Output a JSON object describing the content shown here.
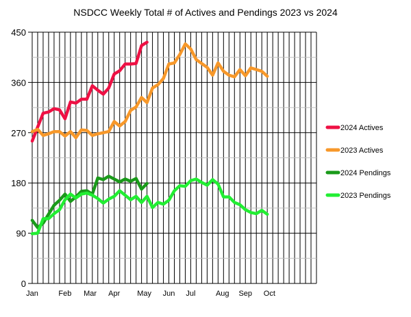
{
  "chart_data": {
    "type": "line",
    "title": "NSDCC Weekly Total # of Actives and Pendings 2023 vs 2024",
    "xlabel": "",
    "ylabel": "",
    "x_unit": "week",
    "xlim": [
      1,
      53
    ],
    "ylim": [
      0,
      450
    ],
    "y_ticks": [
      0,
      90,
      180,
      270,
      360,
      450
    ],
    "x_month_labels": [
      {
        "label": "Jan",
        "week": 1
      },
      {
        "label": "Feb",
        "week": 7
      },
      {
        "label": "Mar",
        "week": 11.6
      },
      {
        "label": "Apr",
        "week": 16
      },
      {
        "label": "May",
        "week": 21.5
      },
      {
        "label": "Jun",
        "week": 26
      },
      {
        "label": "Jul",
        "week": 30
      },
      {
        "label": "Aug",
        "week": 35.8
      },
      {
        "label": "Sep",
        "week": 40
      },
      {
        "label": "Oct",
        "week": 44.4
      }
    ],
    "grid": true,
    "legend_position": "right",
    "series": [
      {
        "name": "2024 Actives",
        "color": "#ee1144",
        "values": [
          255,
          280,
          305,
          307,
          313,
          311,
          295,
          325,
          323,
          330,
          330,
          354,
          346,
          339,
          350,
          375,
          381,
          393,
          393,
          394,
          426,
          432
        ]
      },
      {
        "name": "2023 Actives",
        "color": "#f7982a",
        "values": [
          272,
          276,
          265,
          268,
          272,
          272,
          264,
          272,
          261,
          275,
          274,
          265,
          268,
          270,
          272,
          290,
          282,
          290,
          310,
          316,
          333,
          324,
          350,
          356,
          367,
          393,
          395,
          410,
          429,
          420,
          401,
          394,
          387,
          373,
          395,
          380,
          373,
          370,
          383,
          372,
          386,
          383,
          380,
          371
        ]
      },
      {
        "name": "2024 Pendings",
        "color": "#1a9a1a",
        "values": [
          113,
          100,
          108,
          124,
          140,
          149,
          160,
          147,
          155,
          165,
          166,
          160,
          189,
          186,
          192,
          187,
          182,
          187,
          183,
          188,
          169,
          179
        ]
      },
      {
        "name": "2023 Pendings",
        "color": "#22ee33",
        "values": [
          89,
          90,
          116,
          116,
          125,
          132,
          150,
          160,
          153,
          160,
          162,
          158,
          152,
          144,
          151,
          156,
          166,
          158,
          150,
          156,
          145,
          156,
          136,
          145,
          142,
          149,
          166,
          175,
          174,
          184,
          187,
          181,
          176,
          186,
          178,
          155,
          155,
          145,
          141,
          132,
          127,
          125,
          131,
          124
        ]
      }
    ]
  }
}
